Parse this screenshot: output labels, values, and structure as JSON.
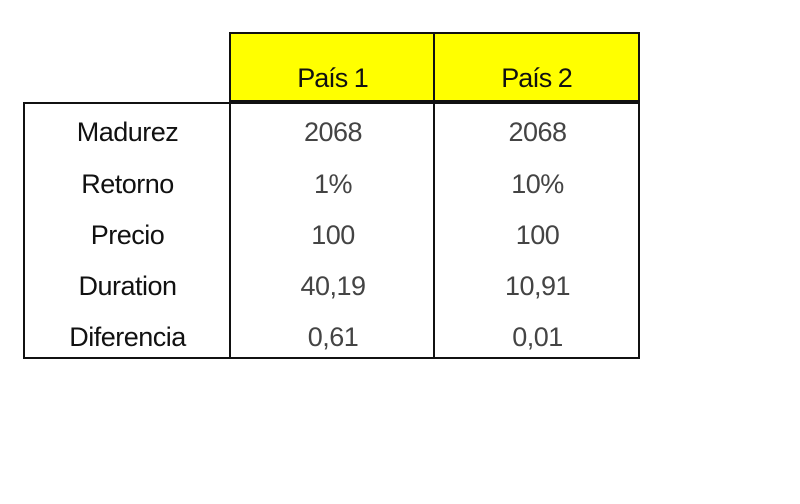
{
  "table": {
    "headers": [
      "País 1",
      "País 2"
    ],
    "header_color": "#ffff00",
    "rows": [
      {
        "label": "Madurez",
        "values": [
          "2068",
          "2068"
        ]
      },
      {
        "label": "Retorno",
        "values": [
          "1%",
          "10%"
        ]
      },
      {
        "label": "Precio",
        "values": [
          "100",
          "100"
        ]
      },
      {
        "label": "Duration",
        "values": [
          "40,19",
          "10,91"
        ]
      },
      {
        "label": "Diferencia",
        "values": [
          "0,61",
          "0,01"
        ]
      }
    ]
  }
}
